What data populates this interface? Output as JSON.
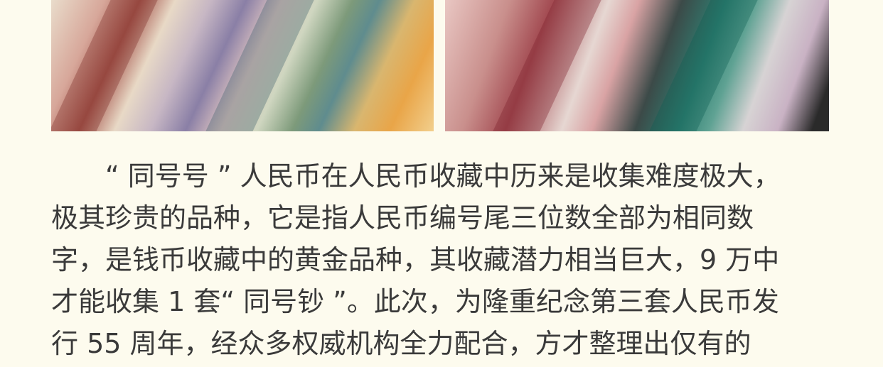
{
  "article": {
    "paragraph_lines": [
      "“ 同号号 ” 人民币在人民币收藏中历来是收集难度极大，",
      "极其珍贵的品种，它是指人民币编号尾三位数全部为相同数",
      "字，是钱币收藏中的黄金品种，其收藏潜力相当巨大，9 万中",
      "才能收集 1 套“ 同号钞 ”。此次，为隆重纪念第三套人民币发",
      "行 55 周年，经众多权威机构全力配合，方才整理出仅有的"
    ]
  }
}
